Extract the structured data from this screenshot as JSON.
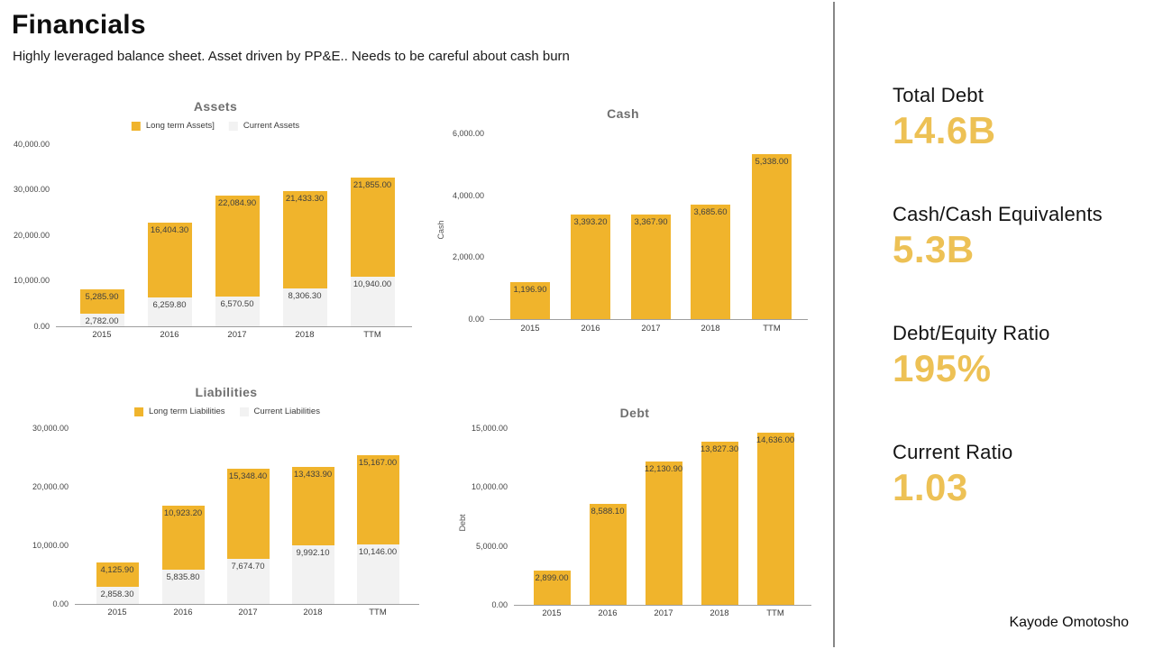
{
  "page": {
    "title": "Financials",
    "subtitle": "Highly leveraged balance sheet. Asset driven by PP&E.. Needs to be careful about cash burn",
    "author": "Kayode Omotosho"
  },
  "colors": {
    "bar_yellow": "#f0b42c",
    "bar_gray": "#f2f2f2",
    "metric_value": "#edc155",
    "divider": "#878787",
    "axis_line": "#9e9e9e"
  },
  "metrics": [
    {
      "label": "Total Debt",
      "value": "14.6B"
    },
    {
      "label": "Cash/Cash Equivalents",
      "value": "5.3B"
    },
    {
      "label": "Debt/Equity Ratio",
      "value": "195%"
    },
    {
      "label": "Current Ratio",
      "value": "1.03"
    }
  ],
  "chart_data": [
    {
      "id": "assets",
      "type": "bar",
      "stacked": true,
      "title": "Assets",
      "categories": [
        "2015",
        "2016",
        "2017",
        "2018",
        "TTM"
      ],
      "series": [
        {
          "key": "current",
          "name": "Current Assets",
          "color_key": "bar_gray",
          "values": [
            2782.0,
            6259.8,
            6570.5,
            8306.3,
            10940.0
          ],
          "labels": [
            "2,782.00",
            "6,259.80",
            "6,570.50",
            "8,306.30",
            "10,940.00"
          ]
        },
        {
          "key": "long-term",
          "name": "Long term Assets]",
          "color_key": "bar_yellow",
          "values": [
            5285.9,
            16404.3,
            22084.9,
            21433.3,
            21855.0
          ],
          "labels": [
            "5,285.90",
            "16,404.30",
            "22,084.90",
            "21,433.30",
            "21,855.00"
          ]
        }
      ],
      "legend": [
        {
          "label": "Long term Assets]",
          "color_key": "bar_yellow"
        },
        {
          "label": "Current Assets",
          "color_key": "bar_gray"
        }
      ],
      "yticks": [
        {
          "value": 0,
          "label": "0.00"
        },
        {
          "value": 10000,
          "label": "10,000.00"
        },
        {
          "value": 20000,
          "label": "20,000.00"
        },
        {
          "value": 30000,
          "label": "30,000.00"
        },
        {
          "value": 40000,
          "label": "40,000.00"
        }
      ],
      "ylim": [
        0,
        40000
      ],
      "xlabel": "",
      "ylabel": "",
      "grid": false,
      "legend_position": "top"
    },
    {
      "id": "cash",
      "type": "bar",
      "stacked": false,
      "title": "Cash",
      "categories": [
        "2015",
        "2016",
        "2017",
        "2018",
        "TTM"
      ],
      "series": [
        {
          "key": "cash",
          "name": "Cash",
          "color_key": "bar_yellow",
          "values": [
            1196.9,
            3393.2,
            3367.9,
            3685.6,
            5338.0
          ],
          "labels": [
            "1,196.90",
            "3,393.20",
            "3,367.90",
            "3,685.60",
            "5,338.00"
          ]
        }
      ],
      "yticks": [
        {
          "value": 0,
          "label": "0.00"
        },
        {
          "value": 2000,
          "label": "2,000.00"
        },
        {
          "value": 4000,
          "label": "4,000.00"
        },
        {
          "value": 6000,
          "label": "6,000.00"
        }
      ],
      "ylim": [
        0,
        6000
      ],
      "xlabel": "",
      "ylabel": "Cash",
      "grid": false,
      "legend_position": "none"
    },
    {
      "id": "liabilities",
      "type": "bar",
      "stacked": true,
      "title": "Liabilities",
      "categories": [
        "2015",
        "2016",
        "2017",
        "2018",
        "TTM"
      ],
      "series": [
        {
          "key": "current",
          "name": "Current Liabilities",
          "color_key": "bar_gray",
          "values": [
            2858.3,
            5835.8,
            7674.7,
            9992.1,
            10146.0
          ],
          "labels": [
            "2,858.30",
            "5,835.80",
            "7,674.70",
            "9,992.10",
            "10,146.00"
          ]
        },
        {
          "key": "long-term",
          "name": "Long term Liabilities",
          "color_key": "bar_yellow",
          "values": [
            4125.9,
            10923.2,
            15348.4,
            13433.9,
            15167.0
          ],
          "labels": [
            "4,125.90",
            "10,923.20",
            "15,348.40",
            "13,433.90",
            "15,167.00"
          ]
        }
      ],
      "legend": [
        {
          "label": "Long term Liabilities",
          "color_key": "bar_yellow"
        },
        {
          "label": "Current Liabilities",
          "color_key": "bar_gray"
        }
      ],
      "yticks": [
        {
          "value": 0,
          "label": "0.00"
        },
        {
          "value": 10000,
          "label": "10,000.00"
        },
        {
          "value": 20000,
          "label": "20,000.00"
        },
        {
          "value": 30000,
          "label": "30,000.00"
        }
      ],
      "ylim": [
        0,
        30000
      ],
      "xlabel": "",
      "ylabel": "",
      "grid": false,
      "legend_position": "top"
    },
    {
      "id": "debt",
      "type": "bar",
      "stacked": false,
      "title": "Debt",
      "categories": [
        "2015",
        "2016",
        "2017",
        "2018",
        "TTM"
      ],
      "series": [
        {
          "key": "debt",
          "name": "Debt",
          "color_key": "bar_yellow",
          "values": [
            2899.0,
            8588.1,
            12130.9,
            13827.3,
            14636.0
          ],
          "labels": [
            "2,899.00",
            "8,588.10",
            "12,130.90",
            "13,827.30",
            "14,636.00"
          ]
        }
      ],
      "yticks": [
        {
          "value": 0,
          "label": "0.00"
        },
        {
          "value": 5000,
          "label": "5,000.00"
        },
        {
          "value": 10000,
          "label": "10,000.00"
        },
        {
          "value": 15000,
          "label": "15,000.00"
        }
      ],
      "ylim": [
        0,
        15000
      ],
      "xlabel": "",
      "ylabel": "Debt",
      "grid": false,
      "legend_position": "none"
    }
  ]
}
